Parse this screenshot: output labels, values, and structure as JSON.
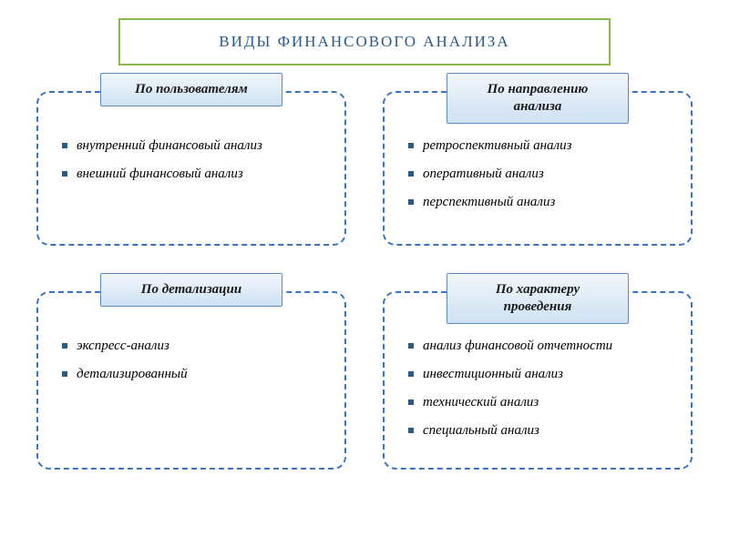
{
  "title": {
    "text": "ВИДЫ ФИНАНСОВОГО АНАЛИЗА",
    "border_color": "#8db94a",
    "text_color": "#2a5a88",
    "background_color": "#ffffff"
  },
  "dashed_border_color": "#3b73c4",
  "dashed_border_width": 2,
  "card_header": {
    "bg_gradient_top": "#f1f7fc",
    "bg_gradient_bottom": "#cfe1f3",
    "border_color": "#5a89c4",
    "text_color": "#1a1a1a"
  },
  "bullet_color": "#2a5a88",
  "cards": [
    {
      "header": "По пользователям",
      "justified": true,
      "items": [
        "внутренний финансовый анализ",
        "внешний финансовый анализ"
      ]
    },
    {
      "header": "По направлению анализа",
      "justified": false,
      "items": [
        "ретроспективный анализ",
        "оперативный анализ",
        "перспективный анализ"
      ]
    },
    {
      "header": "По детализации",
      "justified": false,
      "items": [
        "экспресс-анализ",
        "детализированный"
      ]
    },
    {
      "header": "По характеру проведения",
      "justified": true,
      "items": [
        "анализ финансовой отчетности",
        "инвестиционный анализ",
        "технический анализ",
        "специальный анализ"
      ]
    }
  ]
}
